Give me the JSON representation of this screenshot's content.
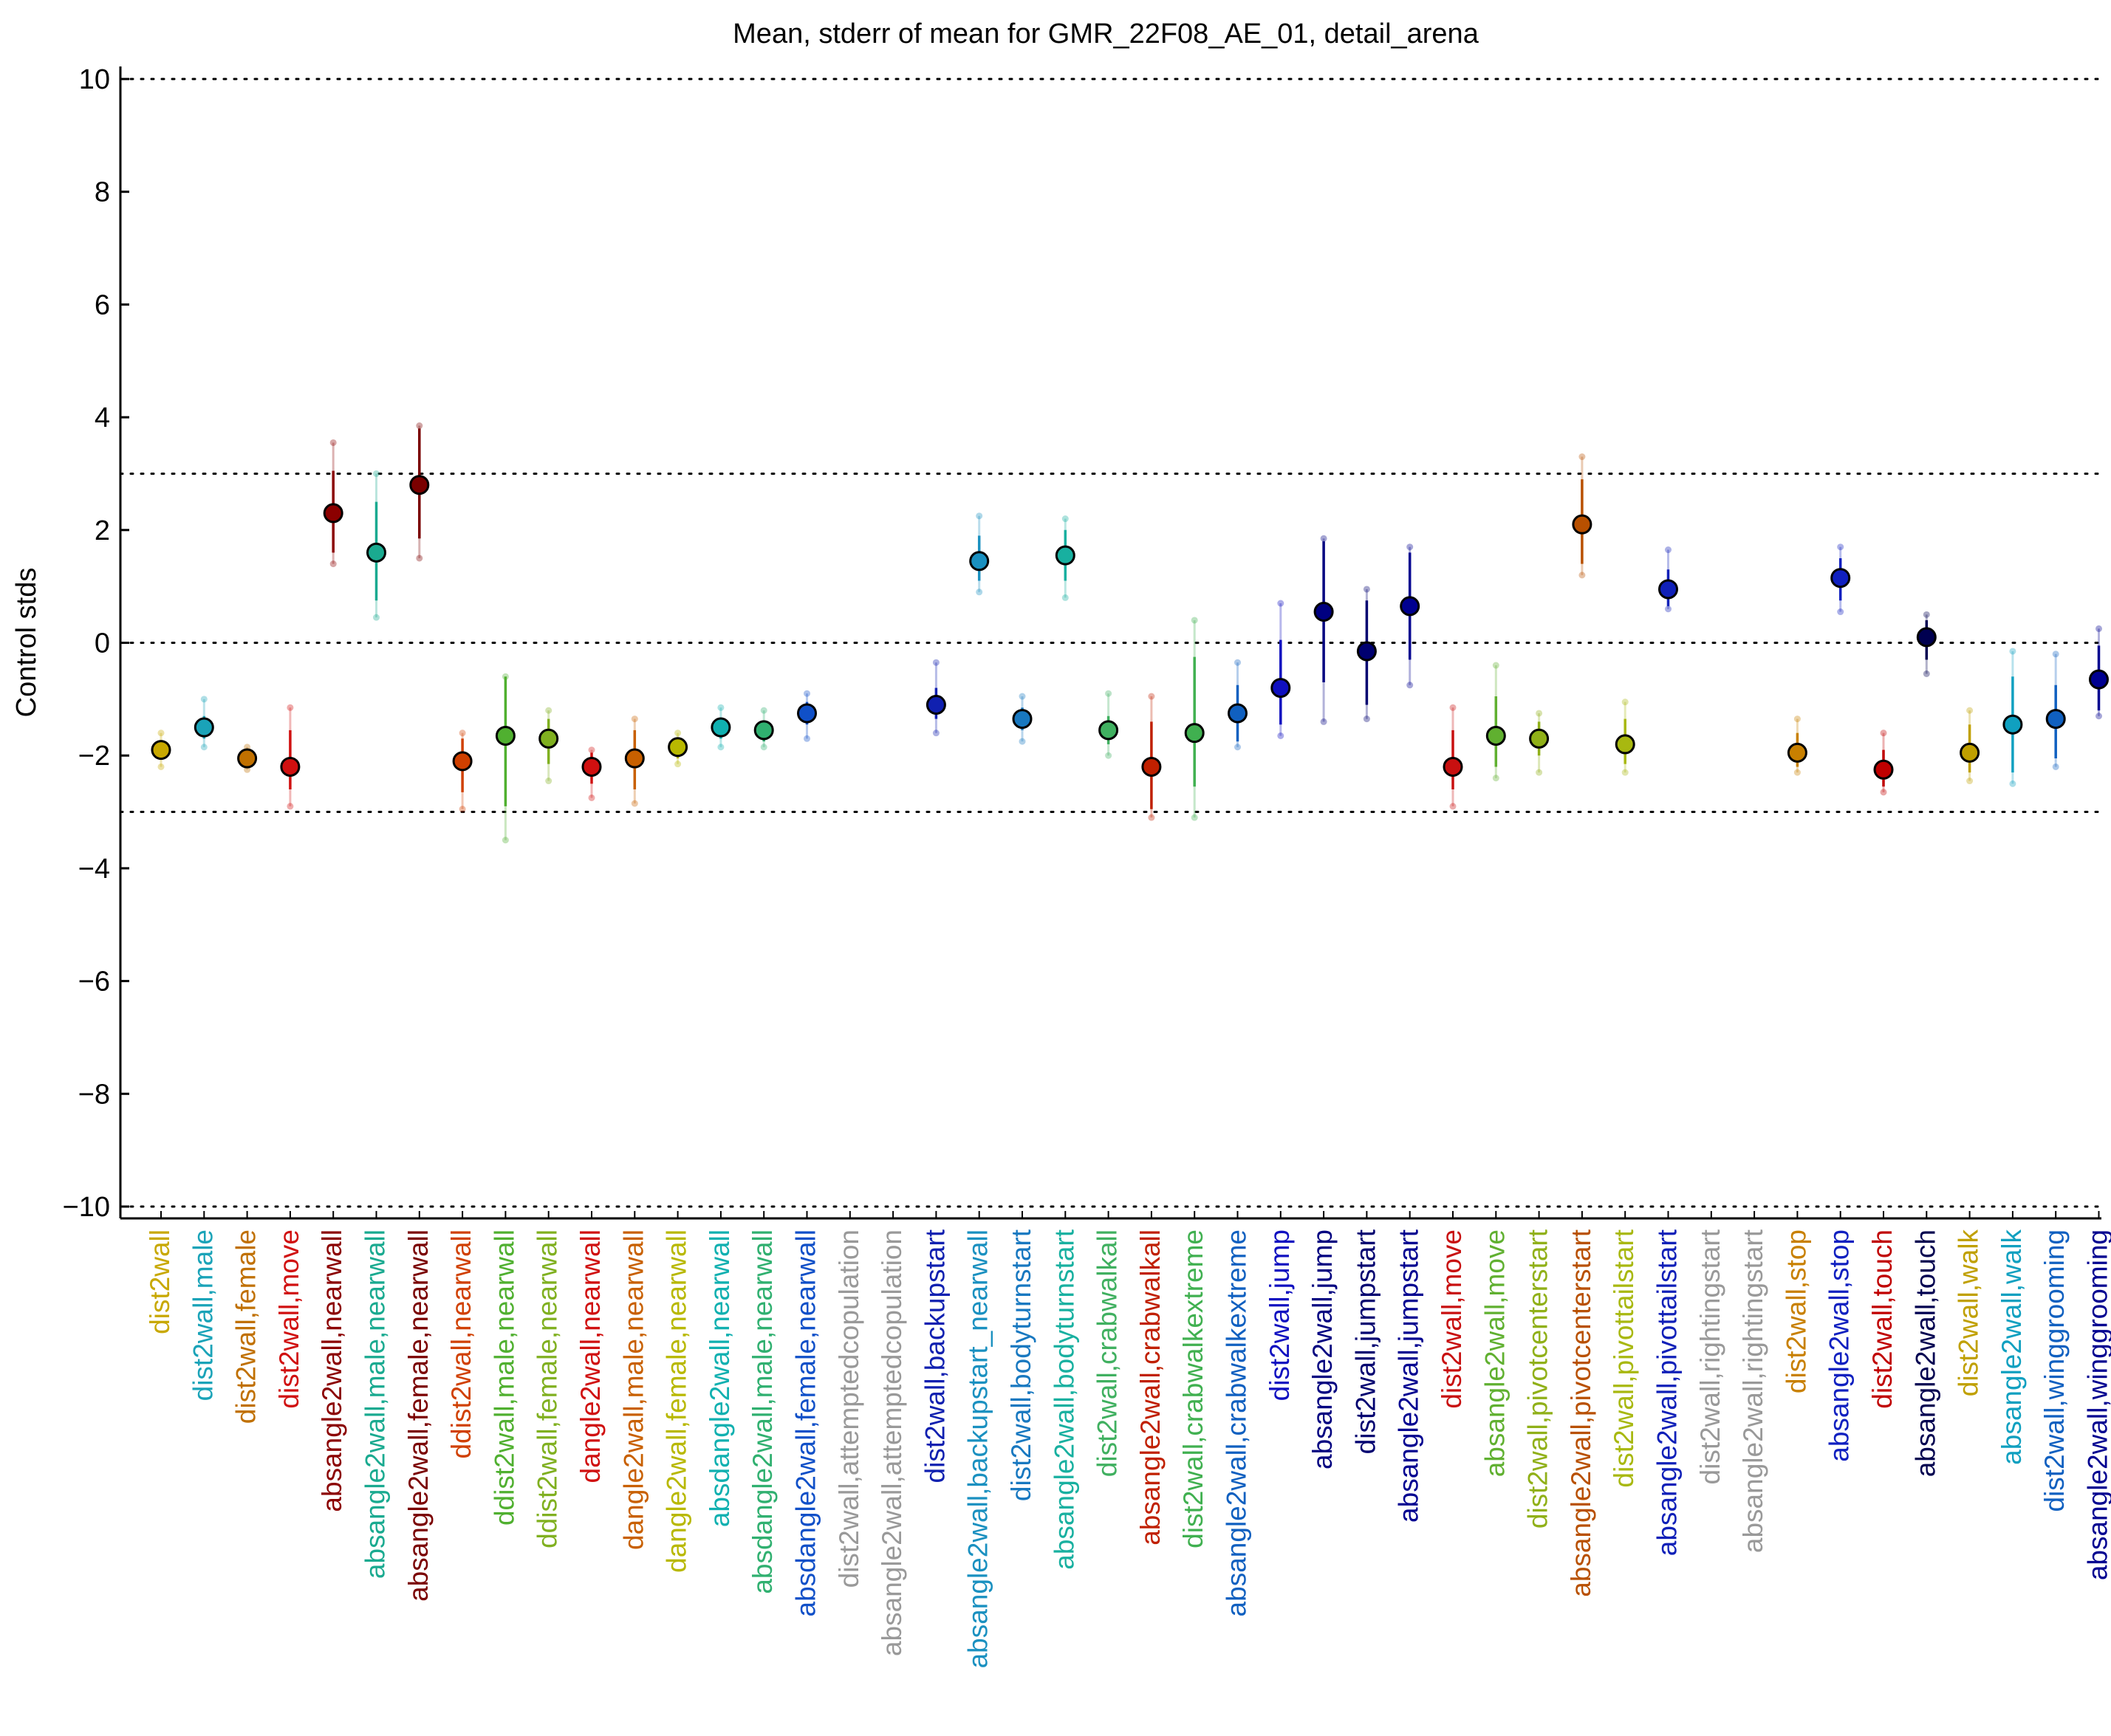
{
  "chart_data": {
    "type": "scatter",
    "title": "Mean, stderr of mean for GMR_22F08_AE_01, detail_arena",
    "ylabel": "Control stds",
    "xlabel": "",
    "ylim": [
      -10,
      10
    ],
    "yticks": [
      10,
      8,
      6,
      4,
      2,
      0,
      -2,
      -4,
      -6,
      -8,
      -10
    ],
    "ytick_labels": [
      "10",
      "8",
      "6",
      "4",
      "2",
      "0",
      "−2",
      "−4",
      "−6",
      "−8",
      "−10"
    ],
    "reference_lines": [
      10,
      3,
      0,
      -3,
      -10
    ],
    "grid": false,
    "legend": "none",
    "points": [
      {
        "label": "dist2wall",
        "color": "#c8a800",
        "mean": -1.9,
        "se_low": -2.05,
        "se_high": -1.75,
        "range_low": -2.2,
        "range_high": -1.6
      },
      {
        "label": "dist2wall,male",
        "color": "#1aa3b8",
        "mean": -1.5,
        "se_low": -1.7,
        "se_high": -1.3,
        "range_low": -1.85,
        "range_high": -1.0
      },
      {
        "label": "dist2wall,female",
        "color": "#c07000",
        "mean": -2.05,
        "se_low": -2.15,
        "se_high": -1.95,
        "range_low": -2.25,
        "range_high": -1.85
      },
      {
        "label": "dist2wall,move",
        "color": "#d01010",
        "mean": -2.2,
        "se_low": -2.6,
        "se_high": -1.55,
        "range_low": -2.9,
        "range_high": -1.15
      },
      {
        "label": "absangle2wall,nearwall",
        "color": "#8b0000",
        "mean": 2.3,
        "se_low": 1.6,
        "se_high": 3.05,
        "range_low": 1.4,
        "range_high": 3.55
      },
      {
        "label": "absangle2wall,male,nearwall",
        "color": "#1aaa90",
        "mean": 1.6,
        "se_low": 0.75,
        "se_high": 2.5,
        "range_low": 0.45,
        "range_high": 3.0
      },
      {
        "label": "absangle2wall,female,nearwall",
        "color": "#7a0000",
        "mean": 2.8,
        "se_low": 1.85,
        "se_high": 3.8,
        "range_low": 1.5,
        "range_high": 3.85
      },
      {
        "label": "ddist2wall,nearwall",
        "color": "#d04000",
        "mean": -2.1,
        "se_low": -2.65,
        "se_high": -1.7,
        "range_low": -2.95,
        "range_high": -1.6
      },
      {
        "label": "ddist2wall,male,nearwall",
        "color": "#50b030",
        "mean": -1.65,
        "se_low": -2.9,
        "se_high": -0.6,
        "range_low": -3.5,
        "range_high": -0.6
      },
      {
        "label": "ddist2wall,female,nearwall",
        "color": "#80b020",
        "mean": -1.7,
        "se_low": -2.15,
        "se_high": -1.35,
        "range_low": -2.45,
        "range_high": -1.2
      },
      {
        "label": "dangle2wall,nearwall",
        "color": "#d01010",
        "mean": -2.2,
        "se_low": -2.5,
        "se_high": -1.95,
        "range_low": -2.75,
        "range_high": -1.9
      },
      {
        "label": "dangle2wall,male,nearwall",
        "color": "#c86000",
        "mean": -2.05,
        "se_low": -2.6,
        "se_high": -1.55,
        "range_low": -2.85,
        "range_high": -1.35
      },
      {
        "label": "dangle2wall,female,nearwall",
        "color": "#b8b800",
        "mean": -1.85,
        "se_low": -2.05,
        "se_high": -1.7,
        "range_low": -2.15,
        "range_high": -1.6
      },
      {
        "label": "absdangle2wall,nearwall",
        "color": "#10b0b0",
        "mean": -1.5,
        "se_low": -1.7,
        "se_high": -1.35,
        "range_low": -1.85,
        "range_high": -1.15
      },
      {
        "label": "absdangle2wall,male,nearwall",
        "color": "#30b070",
        "mean": -1.55,
        "se_low": -1.75,
        "se_high": -1.4,
        "range_low": -1.85,
        "range_high": -1.2
      },
      {
        "label": "absdangle2wall,female,nearwall",
        "color": "#1050c8",
        "mean": -1.25,
        "se_low": -1.45,
        "se_high": -1.05,
        "range_low": -1.7,
        "range_high": -0.9
      },
      {
        "label": "dist2wall,attemptedcopulation",
        "color": "#999999",
        "mean": null
      },
      {
        "label": "absangle2wall,attemptedcopulation",
        "color": "#999999",
        "mean": null
      },
      {
        "label": "dist2wall,backupstart",
        "color": "#1020b0",
        "mean": -1.1,
        "se_low": -1.35,
        "se_high": -0.8,
        "range_low": -1.6,
        "range_high": -0.35
      },
      {
        "label": "absangle2wall,backupstart_nearwall",
        "color": "#1a90c0",
        "mean": 1.45,
        "se_low": 1.1,
        "se_high": 1.9,
        "range_low": 0.9,
        "range_high": 2.25
      },
      {
        "label": "dist2wall,bodyturnstart",
        "color": "#1878c0",
        "mean": -1.35,
        "se_low": -1.55,
        "se_high": -1.15,
        "range_low": -1.75,
        "range_high": -0.95
      },
      {
        "label": "absangle2wall,bodyturnstart",
        "color": "#18b0a0",
        "mean": 1.55,
        "se_low": 1.1,
        "se_high": 2.0,
        "range_low": 0.8,
        "range_high": 2.2
      },
      {
        "label": "dist2wall,crabwalkall",
        "color": "#40b060",
        "mean": -1.55,
        "se_low": -1.8,
        "se_high": -1.3,
        "range_low": -2.0,
        "range_high": -0.9
      },
      {
        "label": "absangle2wall,crabwalkall",
        "color": "#c02000",
        "mean": -2.2,
        "se_low": -2.95,
        "se_high": -1.4,
        "range_low": -3.1,
        "range_high": -0.95
      },
      {
        "label": "dist2wall,crabwalkextreme",
        "color": "#40b050",
        "mean": -1.6,
        "se_low": -2.55,
        "se_high": -0.25,
        "range_low": -3.1,
        "range_high": 0.4
      },
      {
        "label": "absangle2wall,crabwalkextreme",
        "color": "#1060c0",
        "mean": -1.25,
        "se_low": -1.75,
        "se_high": -0.75,
        "range_low": -1.85,
        "range_high": -0.35
      },
      {
        "label": "dist2wall,jump",
        "color": "#1010c0",
        "mean": -0.8,
        "se_low": -1.45,
        "se_high": 0.05,
        "range_low": -1.65,
        "range_high": 0.7
      },
      {
        "label": "absangle2wall,jump",
        "color": "#000080",
        "mean": 0.55,
        "se_low": -0.7,
        "se_high": 1.8,
        "range_low": -1.4,
        "range_high": 1.85
      },
      {
        "label": "dist2wall,jumpstart",
        "color": "#000070",
        "mean": -0.15,
        "se_low": -1.1,
        "se_high": 0.75,
        "range_low": -1.35,
        "range_high": 0.95
      },
      {
        "label": "absangle2wall,jumpstart",
        "color": "#000090",
        "mean": 0.65,
        "se_low": -0.3,
        "se_high": 1.6,
        "range_low": -0.75,
        "range_high": 1.7
      },
      {
        "label": "dist2wall,move",
        "color": "#c81010",
        "mean": -2.2,
        "se_low": -2.6,
        "se_high": -1.55,
        "range_low": -2.9,
        "range_high": -1.15
      },
      {
        "label": "absangle2wall,move",
        "color": "#60b030",
        "mean": -1.65,
        "se_low": -2.2,
        "se_high": -0.95,
        "range_low": -2.4,
        "range_high": -0.4
      },
      {
        "label": "dist2wall,pivotcenterstart",
        "color": "#90b018",
        "mean": -1.7,
        "se_low": -2.0,
        "se_high": -1.4,
        "range_low": -2.3,
        "range_high": -1.25
      },
      {
        "label": "absangle2wall,pivotcenterstart",
        "color": "#b85000",
        "mean": 2.1,
        "se_low": 1.4,
        "se_high": 2.9,
        "range_low": 1.2,
        "range_high": 3.3
      },
      {
        "label": "dist2wall,pivottailstart",
        "color": "#a8b810",
        "mean": -1.8,
        "se_low": -2.15,
        "se_high": -1.35,
        "range_low": -2.3,
        "range_high": -1.05
      },
      {
        "label": "absangle2wall,pivottailstart",
        "color": "#1020b8",
        "mean": 0.95,
        "se_low": 0.65,
        "se_high": 1.3,
        "range_low": 0.6,
        "range_high": 1.65
      },
      {
        "label": "dist2wall,rightingstart",
        "color": "#999999",
        "mean": null
      },
      {
        "label": "absangle2wall,rightingstart",
        "color": "#999999",
        "mean": null
      },
      {
        "label": "dist2wall,stop",
        "color": "#c88000",
        "mean": -1.95,
        "se_low": -2.2,
        "se_high": -1.6,
        "range_low": -2.3,
        "range_high": -1.35
      },
      {
        "label": "absangle2wall,stop",
        "color": "#1020c0",
        "mean": 1.15,
        "se_low": 0.75,
        "se_high": 1.5,
        "range_low": 0.55,
        "range_high": 1.7
      },
      {
        "label": "dist2wall,touch",
        "color": "#c00000",
        "mean": -2.25,
        "se_low": -2.55,
        "se_high": -1.9,
        "range_low": -2.65,
        "range_high": -1.6
      },
      {
        "label": "absangle2wall,touch",
        "color": "#000050",
        "mean": 0.1,
        "se_low": -0.3,
        "se_high": 0.4,
        "range_low": -0.55,
        "range_high": 0.5
      },
      {
        "label": "dist2wall,walk",
        "color": "#c0a000",
        "mean": -1.95,
        "se_low": -2.3,
        "se_high": -1.45,
        "range_low": -2.45,
        "range_high": -1.2
      },
      {
        "label": "absangle2wall,walk",
        "color": "#10a0c0",
        "mean": -1.45,
        "se_low": -2.3,
        "se_high": -0.6,
        "range_low": -2.5,
        "range_high": -0.15
      },
      {
        "label": "dist2wall,winggrooming",
        "color": "#1060c0",
        "mean": -1.35,
        "se_low": -2.05,
        "se_high": -0.75,
        "range_low": -2.2,
        "range_high": -0.2
      },
      {
        "label": "absangle2wall,winggrooming",
        "color": "#000090",
        "mean": -0.65,
        "se_low": -1.2,
        "se_high": -0.05,
        "range_low": -1.3,
        "range_high": 0.25
      }
    ]
  }
}
